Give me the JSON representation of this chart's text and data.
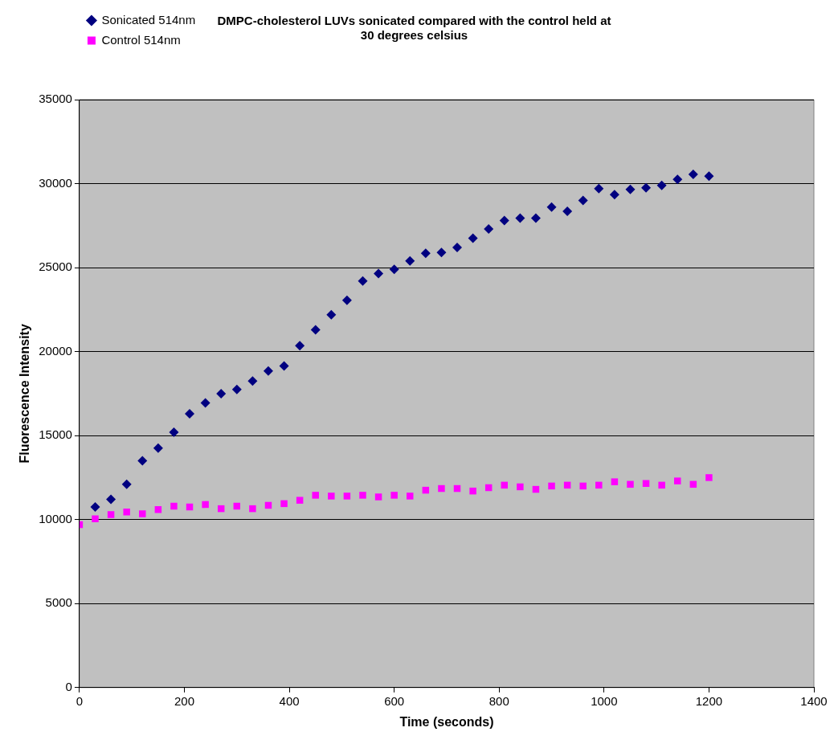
{
  "chart_data": {
    "type": "scatter",
    "title": "DMPC-cholesterol LUVs sonicated compared with the control held at 30 degrees celsius",
    "xlabel": "Time (seconds)",
    "ylabel": "Fluorescence Intensity",
    "x": [
      0,
      30,
      60,
      90,
      120,
      150,
      180,
      210,
      240,
      270,
      300,
      330,
      360,
      390,
      420,
      450,
      480,
      510,
      540,
      570,
      600,
      630,
      660,
      690,
      720,
      750,
      780,
      810,
      840,
      870,
      900,
      930,
      960,
      990,
      1020,
      1050,
      1080,
      1110,
      1140,
      1170,
      1200
    ],
    "series": [
      {
        "name": "Sonicated 514nm",
        "color": "#000080",
        "marker": "diamond",
        "values": [
          null,
          10750,
          11200,
          12100,
          13500,
          14250,
          15200,
          16300,
          16950,
          17500,
          17750,
          18250,
          18850,
          19150,
          20350,
          21300,
          22200,
          23050,
          24200,
          24650,
          24900,
          25400,
          25850,
          25900,
          26200,
          26750,
          27300,
          27800,
          27950,
          27950,
          28600,
          28350,
          29000,
          29700,
          29350,
          29650,
          29750,
          29900,
          30250,
          30550,
          30450
        ]
      },
      {
        "name": "Control 514nm",
        "color": "#ff00ff",
        "marker": "square",
        "values": [
          9700,
          10050,
          10300,
          10450,
          10350,
          10600,
          10800,
          10750,
          10900,
          10650,
          10800,
          10650,
          10850,
          10950,
          11150,
          11450,
          11400,
          11400,
          11450,
          11350,
          11450,
          11400,
          11750,
          11850,
          11850,
          11700,
          11900,
          12050,
          11950,
          11800,
          12000,
          12050,
          12000,
          12050,
          12250,
          12100,
          12150,
          12050,
          12300,
          12100,
          12500
        ]
      }
    ],
    "xlim": [
      0,
      1400
    ],
    "xticks": [
      0,
      200,
      400,
      600,
      800,
      1000,
      1200,
      1400
    ],
    "ylim": [
      0,
      35000
    ],
    "yticks": [
      0,
      5000,
      10000,
      15000,
      20000,
      25000,
      30000,
      35000
    ],
    "grid": "y",
    "legend": "top left"
  }
}
